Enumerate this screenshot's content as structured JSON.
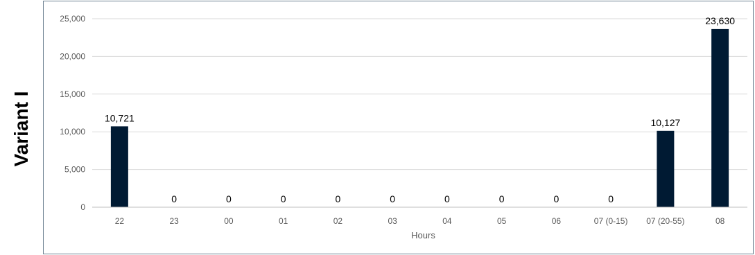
{
  "side_label": "Variant I",
  "chart_data": {
    "type": "bar",
    "categories": [
      "22",
      "23",
      "00",
      "01",
      "02",
      "03",
      "04",
      "05",
      "06",
      "07 (0-15)",
      "07 (20-55)",
      "08"
    ],
    "values": [
      10721,
      0,
      0,
      0,
      0,
      0,
      0,
      0,
      0,
      0,
      10127,
      23630
    ],
    "value_labels": [
      "10,721",
      "0",
      "0",
      "0",
      "0",
      "0",
      "0",
      "0",
      "0",
      "0",
      "10,127",
      "23,630"
    ],
    "title": "",
    "xlabel": "Hours",
    "ylabel": "",
    "ylim": [
      0,
      25000
    ],
    "yticks": [
      0,
      5000,
      10000,
      15000,
      20000,
      25000
    ],
    "ytick_labels": [
      "0",
      "5,000",
      "10,000",
      "15,000",
      "20,000",
      "25,000"
    ],
    "grid": true,
    "legend": "none",
    "colors": {
      "bar": "#001a33",
      "grid": "#d9d9d9",
      "axis": "#bfbfbf",
      "text": "#000000",
      "tick_text": "#595959",
      "frame": "#6b7f90"
    }
  }
}
